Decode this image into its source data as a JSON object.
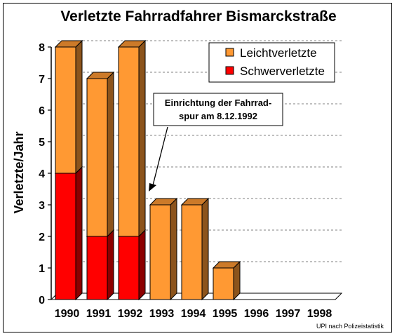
{
  "chart_data": {
    "type": "bar",
    "stacked": true,
    "style": "3d",
    "title": "Verletzte Fahrradfahrer Bismarckstraße",
    "ylabel": "Verletzte/Jahr",
    "xlabel": "",
    "ylim": [
      0,
      8
    ],
    "yticks": [
      "0",
      "1",
      "2",
      "3",
      "4",
      "5",
      "6",
      "7",
      "8"
    ],
    "grid": true,
    "legend_position": "top-right",
    "categories": [
      "1990",
      "1991",
      "1992",
      "1993",
      "1994",
      "1995",
      "1996",
      "1997",
      "1998"
    ],
    "series": [
      {
        "name": "Schwerverletzte",
        "color": "#ff0000",
        "values": [
          4,
          2,
          2,
          0,
          0,
          0,
          0,
          0,
          0
        ]
      },
      {
        "name": "Leichtverletzte",
        "color": "#ff9933",
        "values": [
          4,
          5,
          6,
          3,
          3,
          1,
          0,
          0,
          0
        ]
      }
    ],
    "legend_order": [
      "Leichtverletzte",
      "Schwerverletzte"
    ],
    "annotation": {
      "lines": [
        "Einrichtung der Fahrrad-",
        "spur am 8.12.1992"
      ],
      "points_to_category": "1993"
    },
    "source_note": "UPI nach Polizeistatistik"
  }
}
